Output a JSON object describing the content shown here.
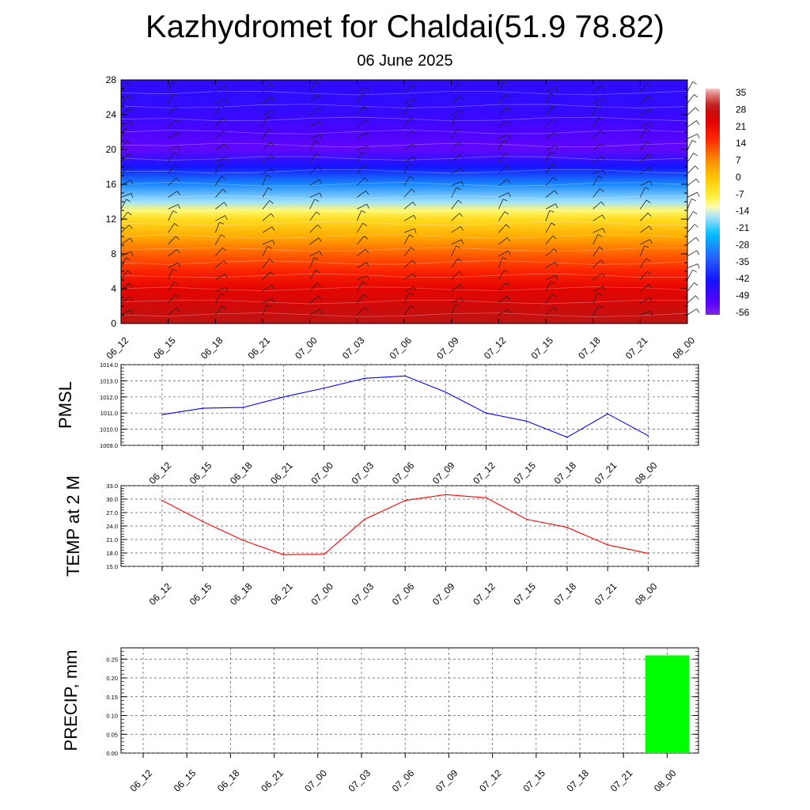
{
  "header": {
    "title": "Kazhydromet for Chaldai(51.9 78.82)",
    "subtitle": "06 June 2025"
  },
  "time_labels": [
    "06_12",
    "06_15",
    "06_18",
    "06_21",
    "07_00",
    "07_03",
    "07_06",
    "07_09",
    "07_12",
    "07_15",
    "07_18",
    "07_21",
    "08_00"
  ],
  "chart_data": [
    {
      "type": "heatmap",
      "title": "",
      "xlabel": "",
      "ylabel": "",
      "x": [
        "06_12",
        "06_15",
        "06_18",
        "06_21",
        "07_00",
        "07_03",
        "07_06",
        "07_09",
        "07_12",
        "07_15",
        "07_18",
        "07_21",
        "08_00"
      ],
      "y_ticks": [
        0,
        4,
        8,
        12,
        16,
        20,
        24,
        28
      ],
      "ylim": [
        0,
        28
      ],
      "colorbar": {
        "labels": [
          "35",
          "28",
          "21",
          "14",
          "7",
          "0",
          "-7",
          "-14",
          "-21",
          "-28",
          "-35",
          "-42",
          "-49",
          "-56"
        ],
        "range": [
          -60,
          38
        ]
      },
      "temperature_profile": [
        {
          "level": 0,
          "value": 30
        },
        {
          "level": 2,
          "value": 27
        },
        {
          "level": 4,
          "value": 23
        },
        {
          "level": 6,
          "value": 17
        },
        {
          "level": 8,
          "value": 11
        },
        {
          "level": 10,
          "value": 3
        },
        {
          "level": 12,
          "value": -5
        },
        {
          "level": 13,
          "value": -11
        },
        {
          "level": 14,
          "value": -18
        },
        {
          "level": 16,
          "value": -31
        },
        {
          "level": 18,
          "value": -45
        },
        {
          "level": 20,
          "value": -56
        },
        {
          "level": 22,
          "value": -53
        },
        {
          "level": 24,
          "value": -50
        },
        {
          "level": 26,
          "value": -49
        },
        {
          "level": 28,
          "value": -49
        }
      ],
      "wind_barbs": true,
      "grid": false
    },
    {
      "type": "line",
      "ylabel": "PMSL",
      "x": [
        "06_12",
        "06_15",
        "06_18",
        "06_21",
        "07_00",
        "07_03",
        "07_06",
        "07_09",
        "07_12",
        "07_15",
        "07_18",
        "07_21",
        "08_00"
      ],
      "series": [
        {
          "values": [
            1010.9,
            1011.3,
            1011.35,
            1012.0,
            1012.55,
            1013.15,
            1013.3,
            1012.3,
            1011.0,
            1010.5,
            1009.5,
            1010.95,
            1009.6
          ],
          "color": "#0000ff"
        }
      ],
      "ylim": [
        1009.0,
        1014.0
      ],
      "yticks": [
        "1009.0",
        "1010.0",
        "1011.0",
        "1012.0",
        "1013.0",
        "1014.0"
      ],
      "grid": true
    },
    {
      "type": "line",
      "ylabel": "TEMP at 2 M",
      "x": [
        "06_12",
        "06_15",
        "06_18",
        "06_21",
        "07_00",
        "07_03",
        "07_06",
        "07_09",
        "07_12",
        "07_15",
        "07_18",
        "07_21",
        "08_00"
      ],
      "series": [
        {
          "values": [
            29.7,
            25.0,
            20.8,
            17.6,
            17.7,
            25.5,
            29.7,
            31.0,
            30.3,
            25.5,
            23.7,
            19.8,
            17.9
          ],
          "color": "#ff0000"
        }
      ],
      "ylim": [
        15.0,
        33.0
      ],
      "yticks": [
        "15.0",
        "18.0",
        "21.0",
        "24.0",
        "27.0",
        "30.0",
        "33.0"
      ],
      "grid": true
    },
    {
      "type": "bar",
      "ylabel": "PRECIP, mm",
      "categories": [
        "06_12",
        "06_15",
        "06_18",
        "06_21",
        "07_00",
        "07_03",
        "07_06",
        "07_09",
        "07_12",
        "07_15",
        "07_18",
        "07_21",
        "08_00"
      ],
      "values": [
        0,
        0,
        0,
        0,
        0,
        0,
        0,
        0,
        0,
        0,
        0,
        0,
        0.26
      ],
      "ylim": [
        0,
        0.28
      ],
      "yticks": [
        "0.00",
        "0.05",
        "0.10",
        "0.15",
        "0.20",
        "0.25"
      ],
      "bar_color": "#00ff00",
      "grid": true
    }
  ]
}
